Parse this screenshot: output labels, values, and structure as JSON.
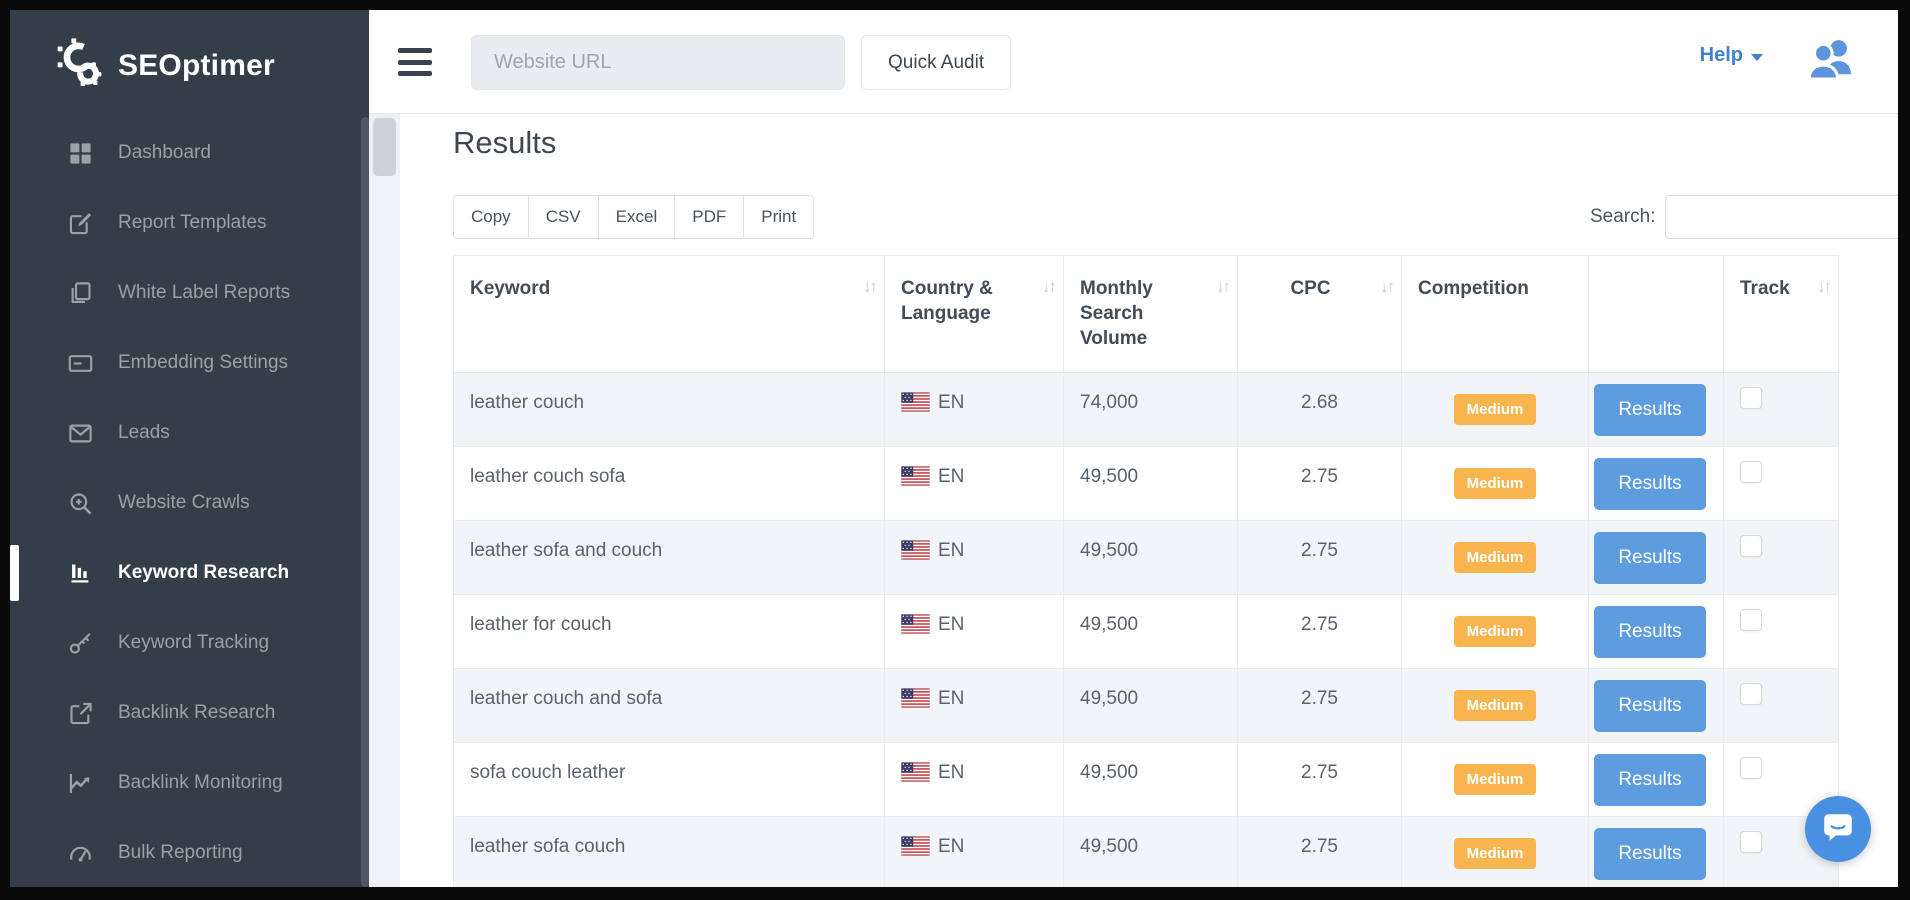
{
  "brand": {
    "name": "SEOptimer"
  },
  "sidebar": {
    "items": [
      {
        "label": "Dashboard",
        "icon": "dashboard-icon",
        "active": false
      },
      {
        "label": "Report Templates",
        "icon": "report-templates-icon",
        "active": false
      },
      {
        "label": "White Label Reports",
        "icon": "white-label-reports-icon",
        "active": false
      },
      {
        "label": "Embedding Settings",
        "icon": "embedding-settings-icon",
        "active": false
      },
      {
        "label": "Leads",
        "icon": "leads-icon",
        "active": false
      },
      {
        "label": "Website Crawls",
        "icon": "website-crawls-icon",
        "active": false
      },
      {
        "label": "Keyword Research",
        "icon": "keyword-research-icon",
        "active": true
      },
      {
        "label": "Keyword Tracking",
        "icon": "keyword-tracking-icon",
        "active": false
      },
      {
        "label": "Backlink Research",
        "icon": "backlink-research-icon",
        "active": false
      },
      {
        "label": "Backlink Monitoring",
        "icon": "backlink-monitoring-icon",
        "active": false
      },
      {
        "label": "Bulk Reporting",
        "icon": "bulk-reporting-icon",
        "active": false
      }
    ]
  },
  "topbar": {
    "url_input_placeholder": "Website URL",
    "quick_audit_label": "Quick Audit",
    "help_label": "Help"
  },
  "results": {
    "title": "Results",
    "export_buttons": [
      "Copy",
      "CSV",
      "Excel",
      "PDF",
      "Print"
    ],
    "search_label": "Search:",
    "search_value": "",
    "table": {
      "columns": [
        {
          "key": "keyword",
          "label": "Keyword",
          "sortable": true
        },
        {
          "key": "country",
          "label": "Country & Language",
          "sortable": true
        },
        {
          "key": "volume",
          "label": "Monthly Search Volume",
          "sortable": true
        },
        {
          "key": "cpc",
          "label": "CPC",
          "sortable": true
        },
        {
          "key": "competition",
          "label": "Competition",
          "sortable": false
        },
        {
          "key": "actions",
          "label": "",
          "sortable": false
        },
        {
          "key": "track",
          "label": "Track",
          "sortable": true
        }
      ],
      "rows": [
        {
          "keyword": "leather couch",
          "country_language": "EN",
          "flag": "us-flag-icon",
          "volume": "74,000",
          "cpc": "2.68",
          "competition": "Medium",
          "action_label": "Results",
          "tracked": false
        },
        {
          "keyword": "leather couch sofa",
          "country_language": "EN",
          "flag": "us-flag-icon",
          "volume": "49,500",
          "cpc": "2.75",
          "competition": "Medium",
          "action_label": "Results",
          "tracked": false
        },
        {
          "keyword": "leather sofa and couch",
          "country_language": "EN",
          "flag": "us-flag-icon",
          "volume": "49,500",
          "cpc": "2.75",
          "competition": "Medium",
          "action_label": "Results",
          "tracked": false
        },
        {
          "keyword": "leather for couch",
          "country_language": "EN",
          "flag": "us-flag-icon",
          "volume": "49,500",
          "cpc": "2.75",
          "competition": "Medium",
          "action_label": "Results",
          "tracked": false
        },
        {
          "keyword": "leather couch and sofa",
          "country_language": "EN",
          "flag": "us-flag-icon",
          "volume": "49,500",
          "cpc": "2.75",
          "competition": "Medium",
          "action_label": "Results",
          "tracked": false
        },
        {
          "keyword": "sofa couch leather",
          "country_language": "EN",
          "flag": "us-flag-icon",
          "volume": "49,500",
          "cpc": "2.75",
          "competition": "Medium",
          "action_label": "Results",
          "tracked": false
        },
        {
          "keyword": "leather sofa couch",
          "country_language": "EN",
          "flag": "us-flag-icon",
          "volume": "49,500",
          "cpc": "2.75",
          "competition": "Medium",
          "action_label": "Results",
          "tracked": false
        }
      ]
    }
  },
  "colors": {
    "sidebar_bg": "#343e49",
    "sidebar_text": "#99a1a9",
    "sidebar_active_text": "#ffffff",
    "topbar_icon": "#39424e",
    "help_link": "#4083c9",
    "users_icon": "#5e94dc",
    "results_button": "#5e9ce0",
    "badge_medium": "#f8b54e",
    "chat_bubble": "#4a90e2",
    "row_stripe": "#f2f5f7",
    "border": "#e9ecef",
    "text_primary": "#414c58",
    "text_secondary": "#59626c"
  }
}
